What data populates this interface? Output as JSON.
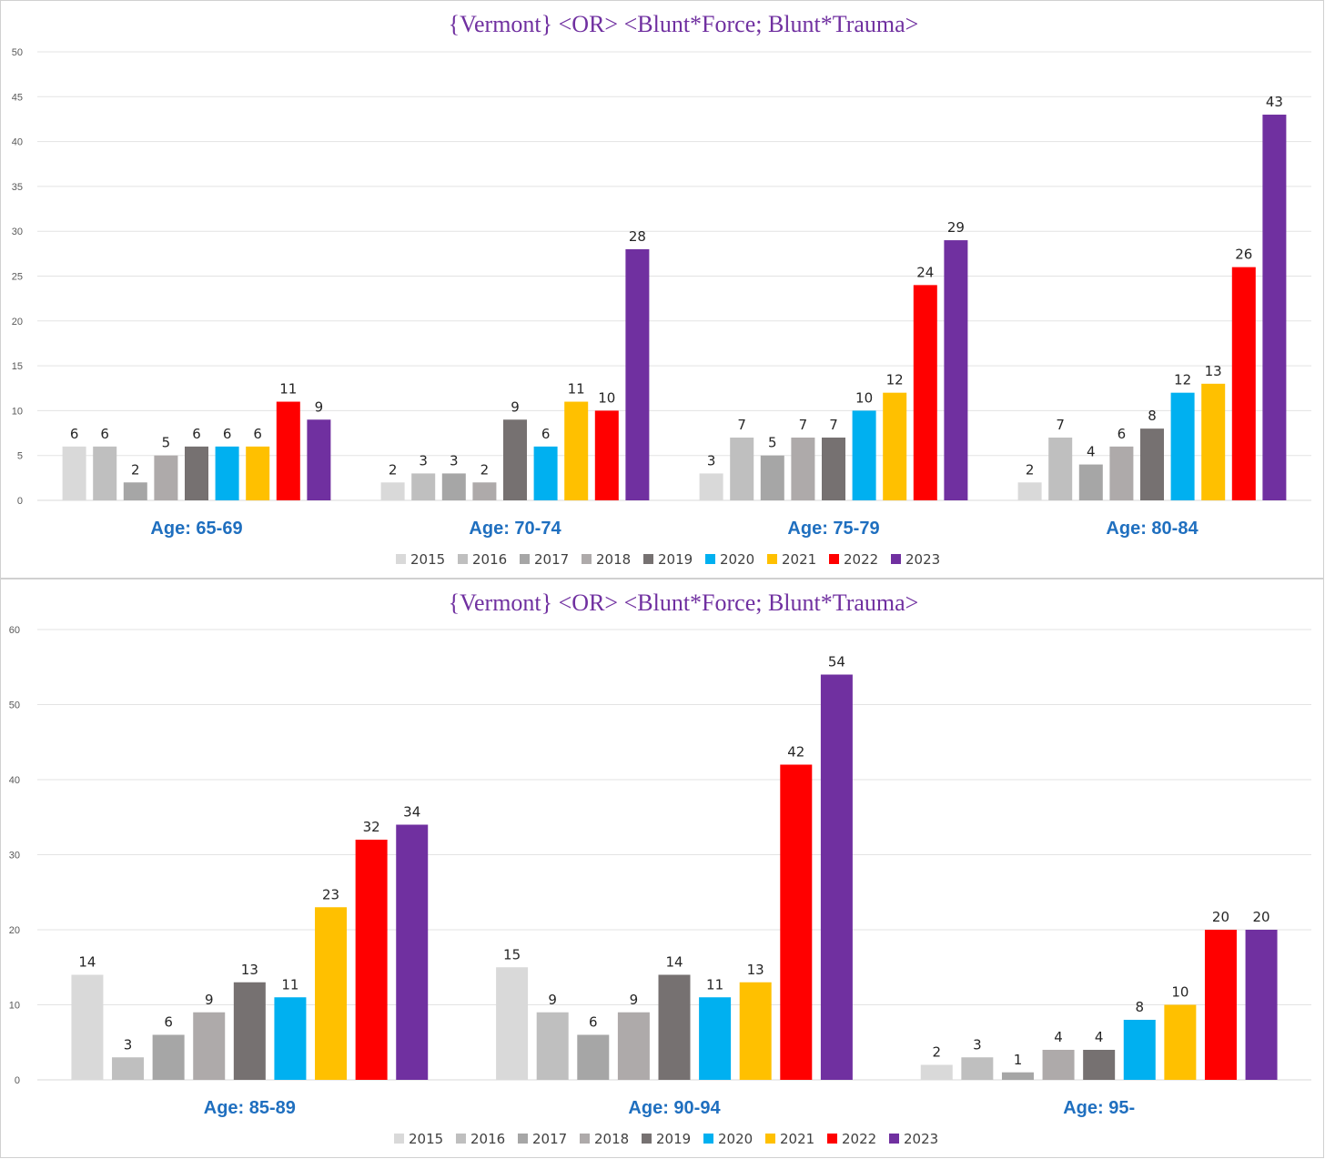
{
  "chart_data": [
    {
      "type": "bar",
      "title": "{Vermont}  <OR> <Blunt*Force; Blunt*Trauma>",
      "xlabel": "",
      "ylabel": "",
      "ylim": [
        0,
        50
      ],
      "yticks": [
        0,
        5,
        10,
        15,
        20,
        25,
        30,
        35,
        40,
        45,
        50
      ],
      "grid": true,
      "legend_position": "bottom",
      "categories": [
        "Age: 65-69",
        "Age: 70-74",
        "Age: 75-79",
        "Age: 80-84"
      ],
      "series": [
        {
          "name": "2015",
          "color": "#d9d9d9",
          "values": [
            6,
            2,
            3,
            2
          ]
        },
        {
          "name": "2016",
          "color": "#bfbfbf",
          "values": [
            6,
            3,
            7,
            7
          ]
        },
        {
          "name": "2017",
          "color": "#a6a6a6",
          "values": [
            2,
            3,
            5,
            4
          ]
        },
        {
          "name": "2018",
          "color": "#aeaaaa",
          "values": [
            5,
            2,
            7,
            6
          ]
        },
        {
          "name": "2019",
          "color": "#767171",
          "values": [
            6,
            9,
            7,
            8
          ]
        },
        {
          "name": "2020",
          "color": "#00b0f0",
          "values": [
            6,
            6,
            10,
            12
          ]
        },
        {
          "name": "2021",
          "color": "#ffc000",
          "values": [
            6,
            11,
            12,
            13
          ]
        },
        {
          "name": "2022",
          "color": "#ff0000",
          "values": [
            11,
            10,
            24,
            26
          ]
        },
        {
          "name": "2023",
          "color": "#7030a0",
          "values": [
            9,
            28,
            29,
            43
          ]
        }
      ]
    },
    {
      "type": "bar",
      "title": "{Vermont}  <OR> <Blunt*Force; Blunt*Trauma>",
      "xlabel": "",
      "ylabel": "",
      "ylim": [
        0,
        60
      ],
      "yticks": [
        0,
        10,
        20,
        30,
        40,
        50,
        60
      ],
      "grid": true,
      "legend_position": "bottom",
      "categories": [
        "Age: 85-89",
        "Age: 90-94",
        "Age: 95-"
      ],
      "series": [
        {
          "name": "2015",
          "color": "#d9d9d9",
          "values": [
            14,
            15,
            2
          ]
        },
        {
          "name": "2016",
          "color": "#bfbfbf",
          "values": [
            3,
            9,
            3
          ]
        },
        {
          "name": "2017",
          "color": "#a6a6a6",
          "values": [
            6,
            6,
            1
          ]
        },
        {
          "name": "2018",
          "color": "#aeaaaa",
          "values": [
            9,
            9,
            4
          ]
        },
        {
          "name": "2019",
          "color": "#767171",
          "values": [
            13,
            14,
            4
          ]
        },
        {
          "name": "2020",
          "color": "#00b0f0",
          "values": [
            11,
            11,
            8
          ]
        },
        {
          "name": "2021",
          "color": "#ffc000",
          "values": [
            23,
            13,
            10
          ]
        },
        {
          "name": "2022",
          "color": "#ff0000",
          "values": [
            32,
            42,
            20
          ]
        },
        {
          "name": "2023",
          "color": "#7030a0",
          "values": [
            34,
            54,
            20
          ]
        }
      ]
    }
  ]
}
